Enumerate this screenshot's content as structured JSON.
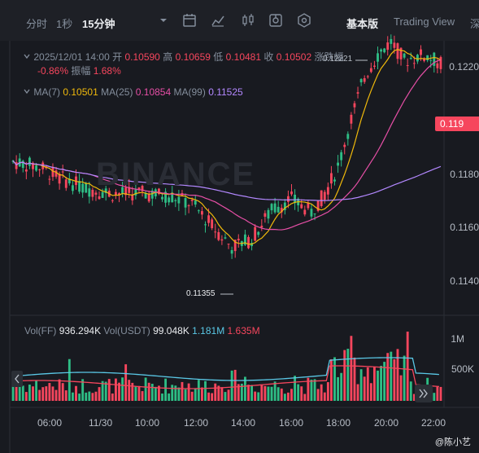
{
  "toolbar": {
    "time_label": "分时",
    "one_sec": "1秒",
    "active_interval": "15分钟",
    "basic_view": "基本版",
    "trading_view": "Trading View",
    "depth": "深"
  },
  "ohlc": {
    "datetime": "2025/12/01 14:00",
    "open_label": "开",
    "open": "0.10590",
    "high_label": "高",
    "high": "0.10659",
    "low_label": "低",
    "low": "0.10481",
    "close_label": "收",
    "close": "0.10502",
    "change_label": "涨跌幅",
    "change": "-0.86%",
    "amp_label": "振幅",
    "amp": "1.68%"
  },
  "ma": {
    "ma7_label": "MA(7)",
    "ma7": "0.10501",
    "ma25_label": "MA(25)",
    "ma25": "0.10854",
    "ma99_label": "MA(99)",
    "ma99": "0.11525"
  },
  "annotations": {
    "high_marker": "0.12221",
    "low_marker": "0.11355"
  },
  "price_tag": "0.119",
  "y_ticks": [
    "0.1220",
    "0.1200",
    "0.1180",
    "0.1160",
    "0.1140"
  ],
  "volume": {
    "ff_label": "Vol(FF)",
    "ff_value": "936.294K",
    "usdt_label": "Vol(USDT)",
    "usdt_value": "99.048K",
    "ma1": "1.181M",
    "ma2": "1.635M",
    "y_ticks": [
      "1M",
      "500K"
    ]
  },
  "x_ticks": [
    "06:00",
    "11/30",
    "10:00",
    "12:00",
    "14:00",
    "16:00",
    "18:00",
    "20:00",
    "22:00"
  ],
  "watermark": "BINANCE",
  "footer": "@陈小艺",
  "colors": {
    "up": "#2ebd85",
    "down": "#f6465d",
    "ma7": "#f0b90b",
    "ma25": "#e64fa6",
    "ma99": "#b388ff",
    "vol_ma1": "#5ac8e6",
    "vol_ma2": "#f6465d"
  }
}
